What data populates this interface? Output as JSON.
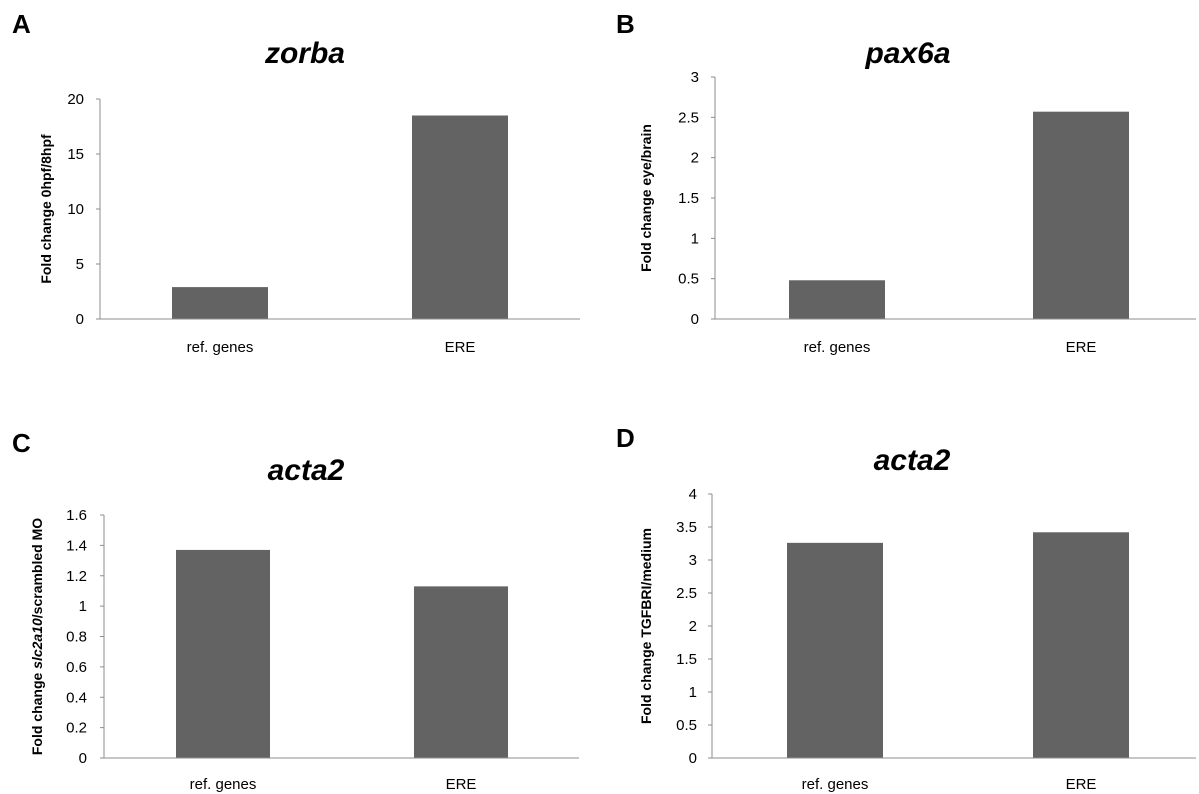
{
  "chart_data": [
    {
      "type": "bar",
      "panel": "A",
      "title": "zorba",
      "ylabel": [
        {
          "text": "Fold change 0hpf/8hpf",
          "italic": false
        }
      ],
      "categories": [
        "ref. genes",
        "ERE"
      ],
      "values": [
        2.9,
        18.5
      ],
      "ylim": [
        0,
        20
      ],
      "yticks": [
        "0",
        "5",
        "10",
        "15",
        "20"
      ],
      "ytick_values": [
        0,
        5,
        10,
        15,
        20
      ],
      "grid": false,
      "bar_color": "#636363"
    },
    {
      "type": "bar",
      "panel": "B",
      "title": "pax6a",
      "ylabel": [
        {
          "text": "Fold change eye/brain",
          "italic": false
        }
      ],
      "categories": [
        "ref. genes",
        "ERE"
      ],
      "values": [
        0.48,
        2.57
      ],
      "ylim": [
        0,
        3
      ],
      "yticks": [
        "0",
        "0.5",
        "1",
        "1.5",
        "2",
        "2.5",
        "3"
      ],
      "ytick_values": [
        0,
        0.5,
        1,
        1.5,
        2,
        2.5,
        3
      ],
      "grid": false,
      "bar_color": "#636363"
    },
    {
      "type": "bar",
      "panel": "C",
      "title": "acta2",
      "ylabel": [
        {
          "text": "Fold change ",
          "italic": false
        },
        {
          "text": "slc2a10",
          "italic": true
        },
        {
          "text": "/scrambled MO",
          "italic": false
        }
      ],
      "categories": [
        "ref. genes",
        "ERE"
      ],
      "values": [
        1.37,
        1.13
      ],
      "ylim": [
        0,
        1.6
      ],
      "yticks": [
        "0",
        "0.2",
        "0.4",
        "0.6",
        "0.8",
        "1",
        "1.2",
        "1.4",
        "1.6"
      ],
      "ytick_values": [
        0,
        0.2,
        0.4,
        0.6,
        0.8,
        1,
        1.2,
        1.4,
        1.6
      ],
      "grid": false,
      "bar_color": "#636363"
    },
    {
      "type": "bar",
      "panel": "D",
      "title": "acta2",
      "ylabel": [
        {
          "text": "Fold change TGFBRI/medium",
          "italic": false
        }
      ],
      "categories": [
        "ref. genes",
        "ERE"
      ],
      "values": [
        3.26,
        3.42
      ],
      "ylim": [
        0,
        4
      ],
      "yticks": [
        "0",
        "0.5",
        "1",
        "1.5",
        "2",
        "2.5",
        "3",
        "3.5",
        "4"
      ],
      "ytick_values": [
        0,
        0.5,
        1,
        1.5,
        2,
        2.5,
        3,
        3.5,
        4
      ],
      "grid": false,
      "bar_color": "#636363"
    }
  ]
}
